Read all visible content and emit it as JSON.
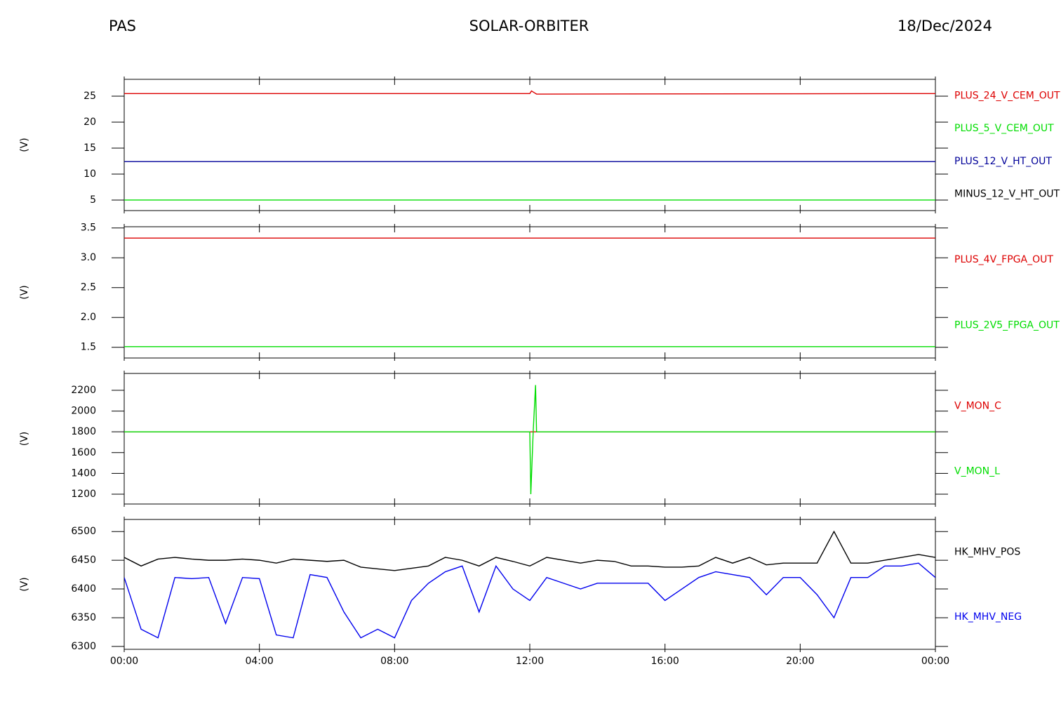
{
  "header": {
    "left": "PAS",
    "center": "SOLAR-ORBITER",
    "right": "18/Dec/2024"
  },
  "chart_data": [
    {
      "type": "line",
      "ylabel": "(V)",
      "ylim": [
        2.97,
        28.24
      ],
      "yticks": [
        5,
        10,
        15,
        20,
        25
      ],
      "x": [
        0,
        12,
        12.05,
        12.2,
        24
      ],
      "series": [
        {
          "name": "PLUS_24_V_CEM_OUT",
          "color": "#dd0000",
          "values": [
            25.5,
            25.5,
            26,
            25.4,
            25.5
          ]
        },
        {
          "name": "PLUS_5_V_CEM_OUT",
          "color": "#00dd00",
          "values": [
            5,
            5,
            5,
            5,
            5
          ]
        },
        {
          "name": "PLUS_12_V_HT_OUT",
          "color": "#000099",
          "values": [
            12.4,
            12.4,
            12.4,
            12.4,
            12.4
          ]
        },
        {
          "name": "MINUS_12_V_HT_OUT",
          "color": "#000000",
          "values": [
            null,
            null,
            null,
            null,
            null
          ]
        }
      ]
    },
    {
      "type": "line",
      "ylabel": "(V)",
      "ylim": [
        1.32,
        3.52
      ],
      "yticks": [
        1.5,
        {
          "value": 2,
          "label": "2.0"
        },
        2.5,
        {
          "value": 3,
          "label": "3.0"
        },
        3.5
      ],
      "x": [
        0,
        24
      ],
      "series": [
        {
          "name": "PLUS_4V_FPGA_OUT",
          "color": "#dd0000",
          "values": [
            3.33,
            3.33
          ]
        },
        {
          "name": "PLUS_2V5_FPGA_OUT",
          "color": "#00dd00",
          "values": [
            1.51,
            1.51
          ]
        }
      ]
    },
    {
      "type": "line",
      "ylabel": "(V)",
      "ylim": [
        1105,
        2362
      ],
      "yticks": [
        1200,
        1400,
        1600,
        1800,
        2000,
        2200
      ],
      "x": [
        0,
        12,
        12.03,
        12.1,
        12.17,
        12.2,
        24
      ],
      "series": [
        {
          "name": "V_MON_C",
          "color": "#dd0000",
          "values": [
            1800,
            1800,
            1800,
            1800,
            1800,
            1800,
            1800
          ]
        },
        {
          "name": "V_MON_L",
          "color": "#00dd00",
          "values": [
            1800,
            1800,
            1200,
            1800,
            2250,
            1800,
            1800
          ]
        }
      ]
    },
    {
      "type": "line",
      "ylabel": "(V)",
      "ylim": [
        6295,
        6521
      ],
      "yticks": [
        6300,
        6350,
        6400,
        6450,
        6500
      ],
      "xlim": [
        0,
        24
      ],
      "xticks": [
        {
          "value": 0,
          "label": "00:00"
        },
        {
          "value": 4,
          "label": "04:00"
        },
        {
          "value": 8,
          "label": "08:00"
        },
        {
          "value": 12,
          "label": "12:00"
        },
        {
          "value": 16,
          "label": "16:00"
        },
        {
          "value": 20,
          "label": "20:00"
        },
        {
          "value": 24,
          "label": "00:00"
        }
      ],
      "x": [
        0,
        0.5,
        1,
        1.5,
        2,
        2.5,
        3,
        3.5,
        4,
        4.5,
        5,
        5.5,
        6,
        6.5,
        7,
        7.5,
        8,
        8.5,
        9,
        9.5,
        10,
        10.5,
        11,
        11.5,
        12,
        12.5,
        13,
        13.5,
        14,
        14.5,
        15,
        15.5,
        16,
        16.5,
        17,
        17.5,
        18,
        18.5,
        19,
        19.5,
        20,
        20.5,
        21,
        21.5,
        22,
        22.5,
        23,
        23.5,
        24
      ],
      "series": [
        {
          "name": "HK_MHV_POS",
          "color": "#000000",
          "values": [
            6455,
            6440,
            6452,
            6455,
            6452,
            6450,
            6450,
            6452,
            6450,
            6445,
            6452,
            6450,
            6448,
            6450,
            6438,
            6435,
            6432,
            6436,
            6440,
            6455,
            6450,
            6440,
            6455,
            6448,
            6440,
            6455,
            6450,
            6445,
            6450,
            6448,
            6440,
            6440,
            6438,
            6438,
            6440,
            6455,
            6445,
            6455,
            6442,
            6445,
            6445,
            6445,
            6500,
            6445,
            6445,
            6450,
            6455,
            6460,
            6455
          ]
        },
        {
          "name": "HK_MHV_NEG",
          "color": "#0000ee",
          "values": [
            6420,
            6330,
            6315,
            6420,
            6418,
            6420,
            6340,
            6420,
            6418,
            6320,
            6315,
            6425,
            6420,
            6360,
            6315,
            6330,
            6315,
            6380,
            6410,
            6430,
            6440,
            6360,
            6440,
            6400,
            6380,
            6420,
            6410,
            6400,
            6410,
            6410,
            6410,
            6410,
            6380,
            6400,
            6420,
            6430,
            6425,
            6420,
            6390,
            6420,
            6420,
            6390,
            6350,
            6420,
            6420,
            6440,
            6440,
            6445,
            6420
          ]
        }
      ]
    }
  ]
}
